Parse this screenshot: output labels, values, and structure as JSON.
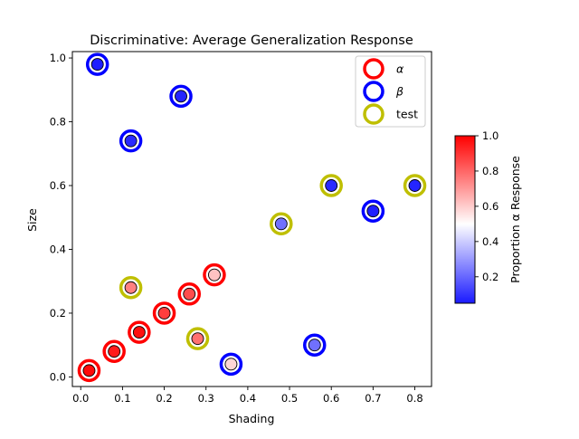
{
  "chart_data": {
    "type": "scatter",
    "title": "Discriminative: Average Generalization Response",
    "xlabel": "Shading",
    "ylabel": "Size",
    "xlim": [
      -0.02,
      0.84
    ],
    "ylim": [
      -0.03,
      1.02
    ],
    "xticks": [
      0.0,
      0.1,
      0.2,
      0.3,
      0.4,
      0.5,
      0.6,
      0.7,
      0.8
    ],
    "xtick_labels": [
      "0.0",
      "0.1",
      "0.2",
      "0.3",
      "0.4",
      "0.5",
      "0.6",
      "0.7",
      "0.8"
    ],
    "yticks": [
      0.0,
      0.2,
      0.4,
      0.6,
      0.8,
      1.0
    ],
    "ytick_labels": [
      "0.0",
      "0.2",
      "0.4",
      "0.6",
      "0.8",
      "1.0"
    ],
    "grid": false,
    "legend": {
      "placement": "top-right",
      "entries": [
        {
          "label": "α",
          "ring_color": "#ff0000"
        },
        {
          "label": "β",
          "ring_color": "#0000ff"
        },
        {
          "label": "test",
          "ring_color": "#bfbf00"
        }
      ]
    },
    "colorbar": {
      "label": "Proportion α Response",
      "range": [
        0.05,
        1.0
      ],
      "ticks": [
        0.2,
        0.4,
        0.6,
        0.8,
        1.0
      ],
      "tick_labels": [
        "0.2",
        "0.4",
        "0.6",
        "0.8",
        "1.0"
      ],
      "colormap": "bwr",
      "colors": [
        "#0000ff",
        "#ffffff",
        "#ff0000"
      ]
    },
    "series": [
      {
        "name": "α",
        "ring_color": "#ff0000",
        "points": [
          {
            "x": 0.02,
            "y": 0.02,
            "p": 0.98
          },
          {
            "x": 0.08,
            "y": 0.08,
            "p": 0.95
          },
          {
            "x": 0.14,
            "y": 0.14,
            "p": 0.97
          },
          {
            "x": 0.2,
            "y": 0.2,
            "p": 0.88
          },
          {
            "x": 0.26,
            "y": 0.26,
            "p": 0.85
          },
          {
            "x": 0.32,
            "y": 0.32,
            "p": 0.62
          }
        ]
      },
      {
        "name": "β",
        "ring_color": "#0000ff",
        "points": [
          {
            "x": 0.04,
            "y": 0.98,
            "p": 0.06
          },
          {
            "x": 0.12,
            "y": 0.74,
            "p": 0.08
          },
          {
            "x": 0.24,
            "y": 0.88,
            "p": 0.07
          },
          {
            "x": 0.36,
            "y": 0.04,
            "p": 0.58
          },
          {
            "x": 0.56,
            "y": 0.1,
            "p": 0.22
          },
          {
            "x": 0.7,
            "y": 0.52,
            "p": 0.06
          }
        ]
      },
      {
        "name": "test",
        "ring_color": "#bfbf00",
        "points": [
          {
            "x": 0.12,
            "y": 0.28,
            "p": 0.75
          },
          {
            "x": 0.28,
            "y": 0.12,
            "p": 0.78
          },
          {
            "x": 0.48,
            "y": 0.48,
            "p": 0.22
          },
          {
            "x": 0.6,
            "y": 0.6,
            "p": 0.08
          },
          {
            "x": 0.8,
            "y": 0.6,
            "p": 0.07
          }
        ]
      }
    ]
  }
}
